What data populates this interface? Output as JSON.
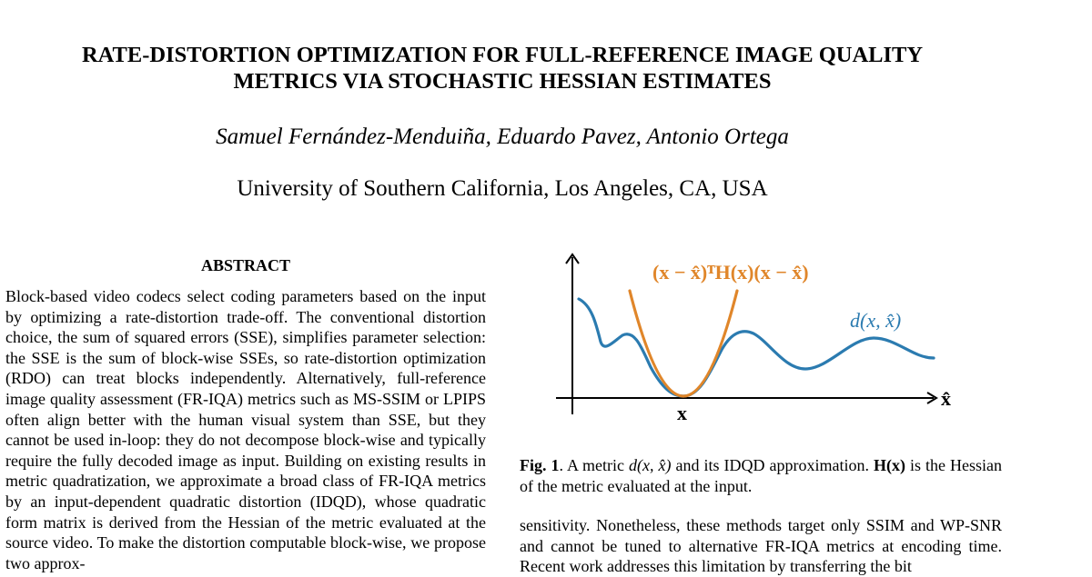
{
  "paper": {
    "title_line1": "RATE-DISTORTION OPTIMIZATION FOR FULL-REFERENCE IMAGE QUALITY",
    "title_line2": "METRICS VIA STOCHASTIC HESSIAN ESTIMATES",
    "authors": "Samuel Fernández-Menduiña, Eduardo Pavez, Antonio Ortega",
    "affiliation": "University of Southern California, Los Angeles, CA, USA"
  },
  "abstract": {
    "heading": "ABSTRACT",
    "text": "Block-based video codecs select coding parameters based on the in­put by optimizing a rate-distortion trade-off. The conventional dis­tortion choice, the sum of squared errors (SSE), simplifies parameter selection: the SSE is the sum of block-wise SSEs, so rate-distortion optimization (RDO) can treat blocks independently. Alternatively, full-reference image quality assessment (FR-IQA) metrics such as MS-SSIM or LPIPS often align better with the human visual sys­tem than SSE, but they cannot be used in-loop: they do not decom­pose block-wise and typically require the fully decoded image as input. Building on existing results in metric quadratization, we ap­proximate a broad class of FR-IQA metrics by an input-dependent quadratic distortion (IDQD), whose quadratic form matrix is derived from the Hessian of the metric evaluated at the source video. To make the distortion computable block-wise, we propose two approx-"
  },
  "figure": {
    "quadratic_label": "(x − x̂)ᵀH(x)(x − x̂)",
    "metric_label": "d(x, x̂)",
    "x_axis_label": "x̂",
    "x_point_label": "x",
    "colors": {
      "metric": "#2b7bb0",
      "quadratic": "#e0862a",
      "axis": "#000000"
    }
  },
  "caption": {
    "label": "Fig. 1",
    "text_part1": ". A metric ",
    "metric": "d(x, x̂)",
    "text_part2": " and its IDQD approximation. ",
    "hessian": "H(x)",
    "text_part3": " is the Hessian of the metric evaluated at the input."
  },
  "right_column": {
    "text": "sensitivity. Nonetheless, these methods target only SSIM and WP-SNR and cannot be tuned to alternative FR-IQA metrics at encoding time. Recent work addresses this limitation by transferring the bit"
  }
}
